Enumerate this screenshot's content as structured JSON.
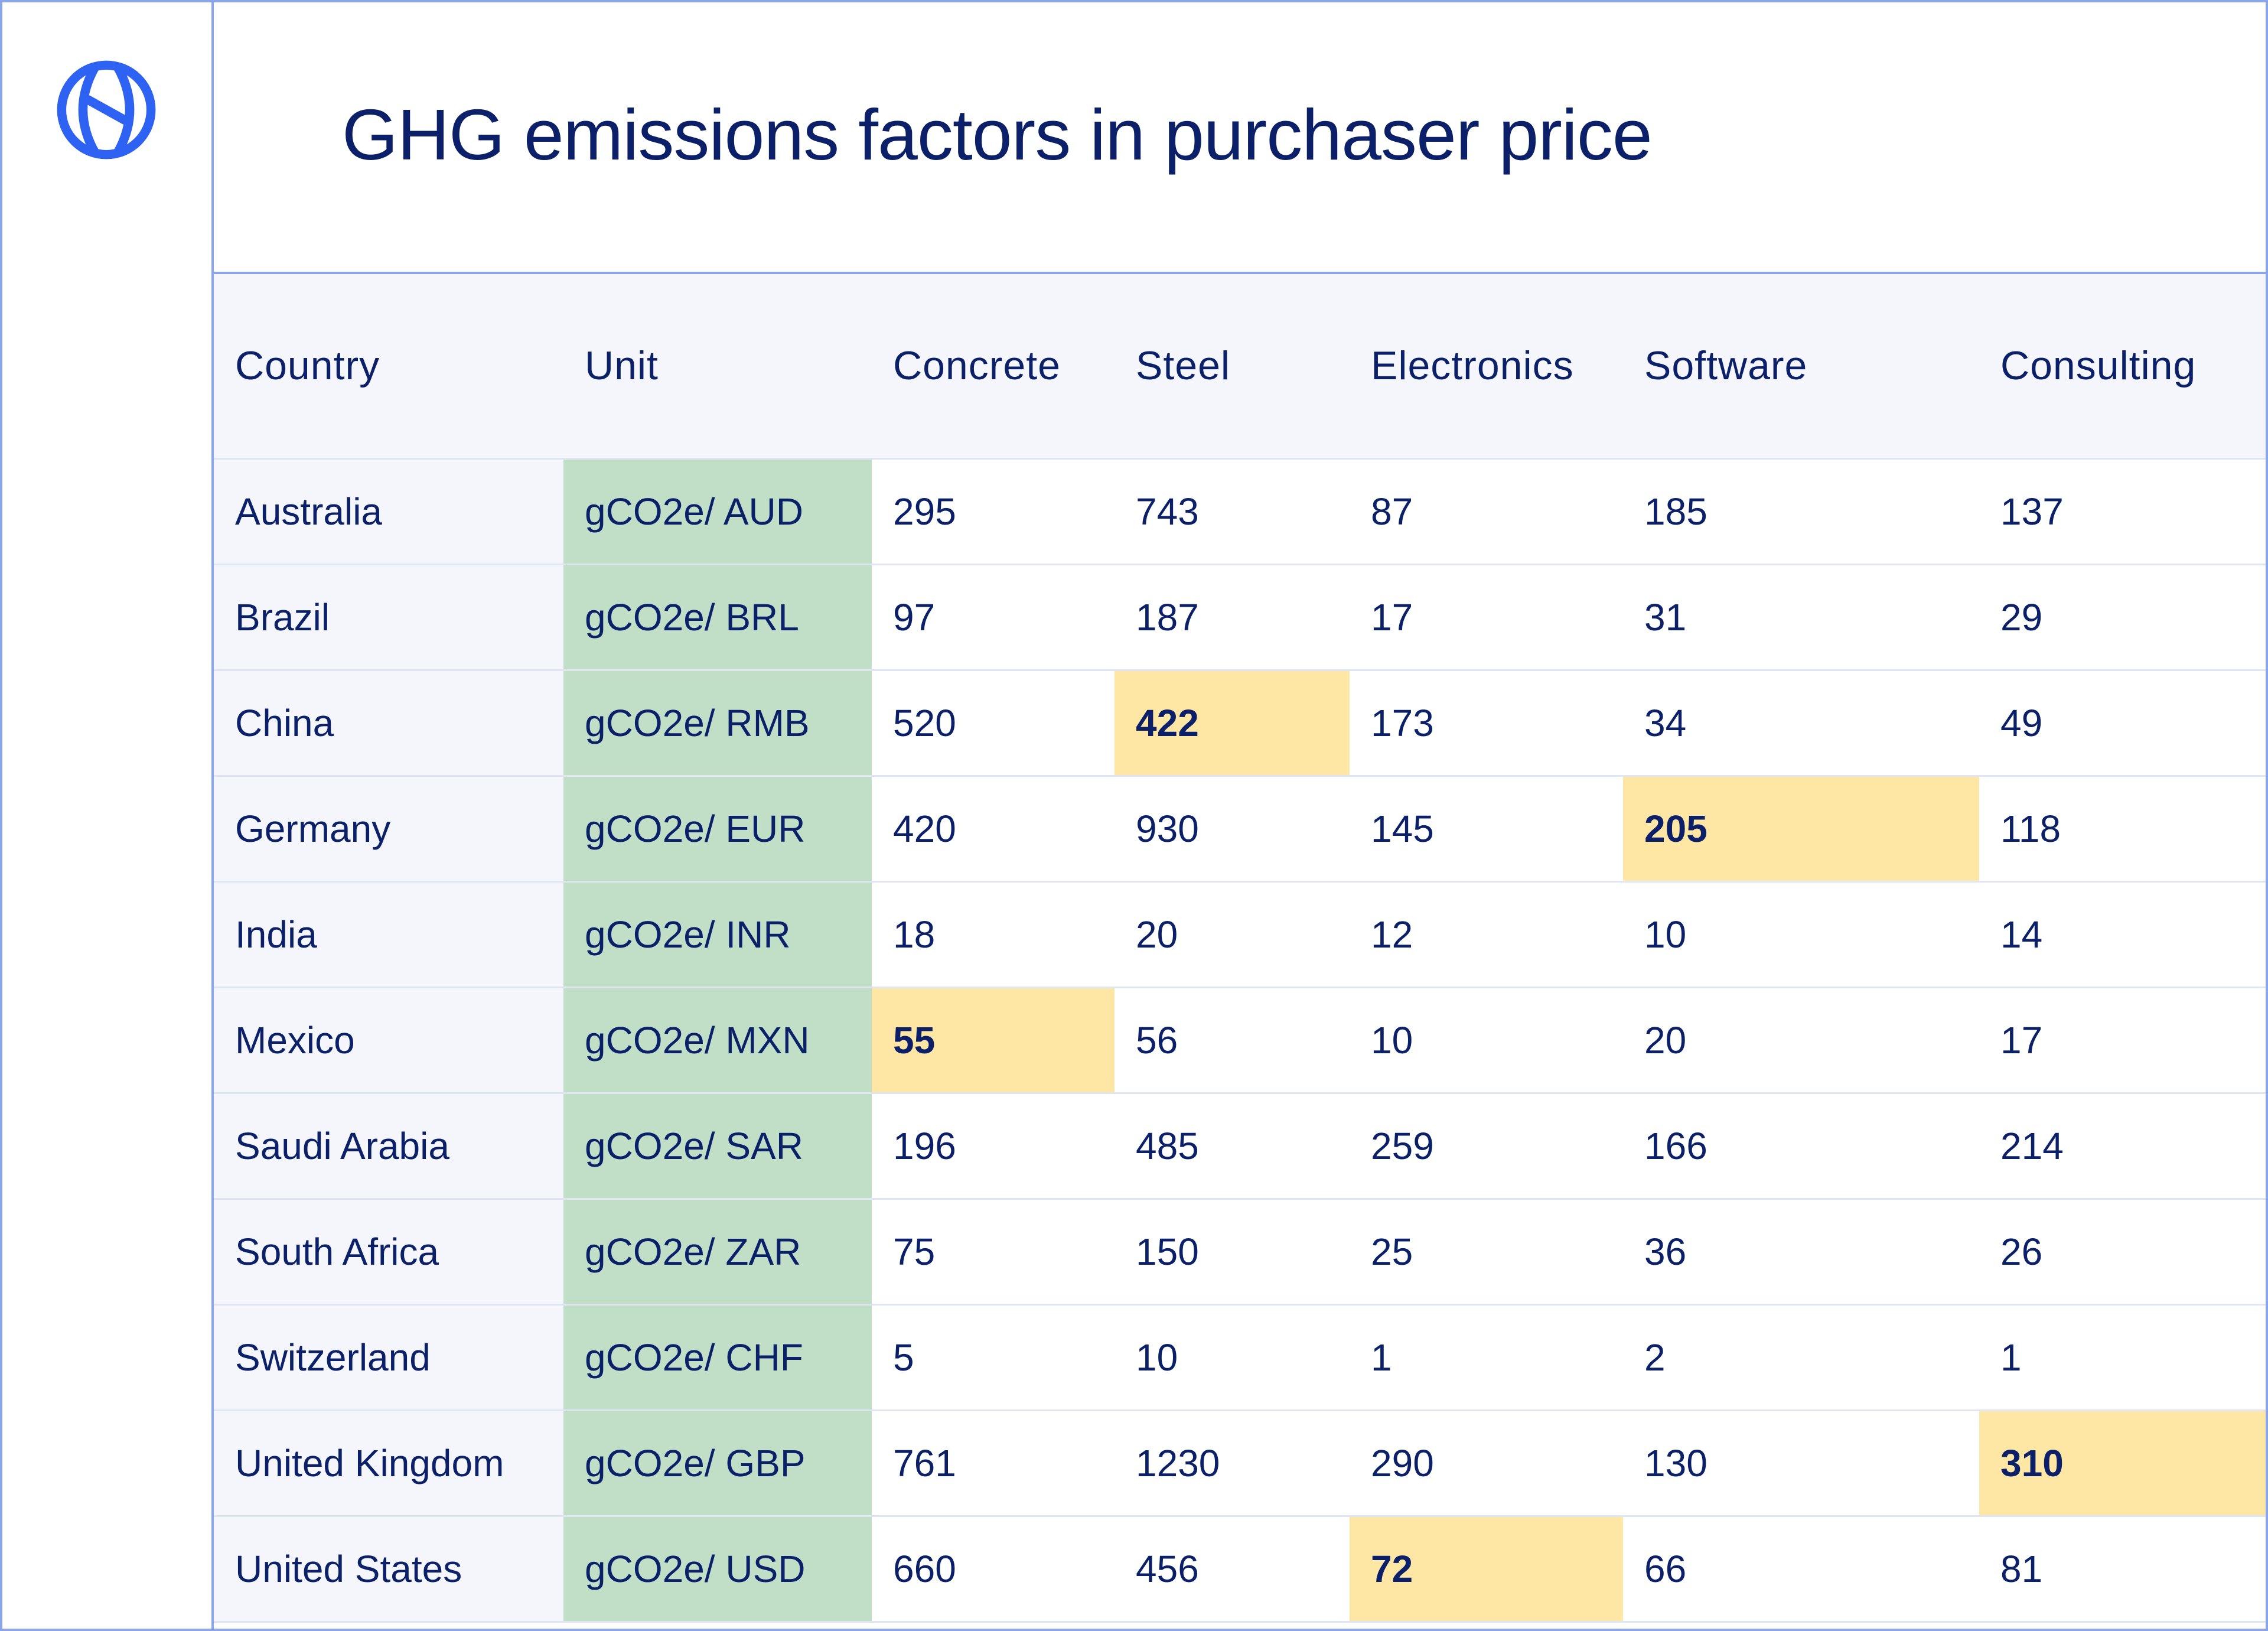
{
  "title": "GHG emissions factors in purchaser price",
  "colors": {
    "frame_border": "#8aa5e8",
    "text": "#0b2068",
    "logo": "#2e62f2",
    "header_bg": "#f4f6fb",
    "unit_bg": "#c1dfc7",
    "highlight_bg": "#fee6a4"
  },
  "icons": {
    "logo": "globe-logo-icon"
  },
  "table": {
    "headers": [
      "Country",
      "Unit",
      "Concrete",
      "Steel",
      "Electronics",
      "Software",
      "Consulting"
    ],
    "rows": [
      {
        "country": "Australia",
        "unit": "gCO2e/ AUD",
        "values": [
          "295",
          "743",
          "87",
          "185",
          "137"
        ],
        "highlight": null
      },
      {
        "country": "Brazil",
        "unit": "gCO2e/ BRL",
        "values": [
          "97",
          "187",
          "17",
          "31",
          "29"
        ],
        "highlight": null
      },
      {
        "country": "China",
        "unit": "gCO2e/ RMB",
        "values": [
          "520",
          "422",
          "173",
          "34",
          "49"
        ],
        "highlight": 1
      },
      {
        "country": "Germany",
        "unit": "gCO2e/ EUR",
        "values": [
          "420",
          "930",
          "145",
          "205",
          "118"
        ],
        "highlight": 3
      },
      {
        "country": "India",
        "unit": "gCO2e/ INR",
        "values": [
          "18",
          "20",
          "12",
          "10",
          "14"
        ],
        "highlight": null
      },
      {
        "country": "Mexico",
        "unit": "gCO2e/ MXN",
        "values": [
          "55",
          "56",
          "10",
          "20",
          "17"
        ],
        "highlight": 0
      },
      {
        "country": "Saudi Arabia",
        "unit": "gCO2e/ SAR",
        "values": [
          "196",
          "485",
          "259",
          "166",
          "214"
        ],
        "highlight": null
      },
      {
        "country": "South Africa",
        "unit": "gCO2e/ ZAR",
        "values": [
          "75",
          "150",
          "25",
          "36",
          "26"
        ],
        "highlight": null
      },
      {
        "country": "Switzerland",
        "unit": "gCO2e/ CHF",
        "values": [
          "5",
          "10",
          "1",
          "2",
          "1"
        ],
        "highlight": null
      },
      {
        "country": "United Kingdom",
        "unit": "gCO2e/ GBP",
        "values": [
          "761",
          "1230",
          "290",
          "130",
          "310"
        ],
        "highlight": 4
      },
      {
        "country": "United States",
        "unit": "gCO2e/ USD",
        "values": [
          "660",
          "456",
          "72",
          "66",
          "81"
        ],
        "highlight": 2
      }
    ]
  }
}
